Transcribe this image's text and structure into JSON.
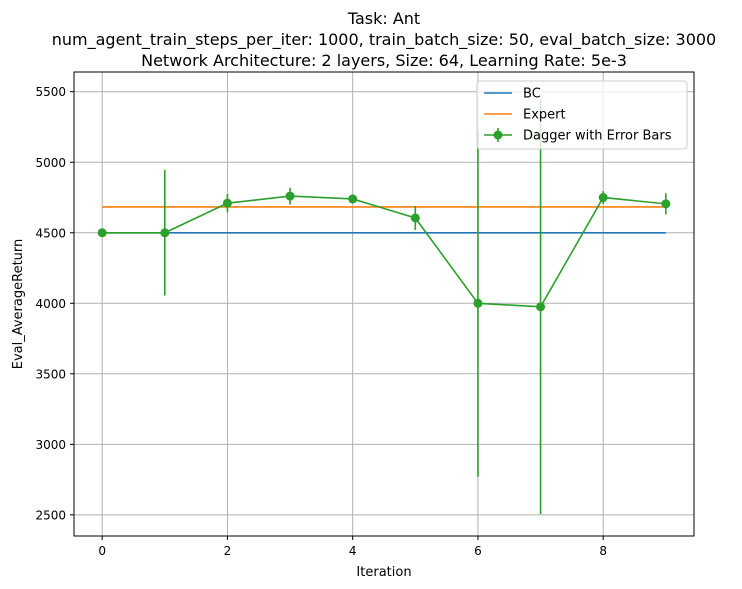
{
  "chart_data": {
    "type": "line",
    "title_lines": [
      "Task: Ant",
      "num_agent_train_steps_per_iter: 1000, train_batch_size: 50, eval_batch_size: 3000",
      "Network Architecture: 2 layers, Size: 64, Learning Rate: 5e-3"
    ],
    "xlabel": "Iteration",
    "ylabel": "Eval_AverageReturn",
    "xlim": [
      -0.45,
      9.45
    ],
    "ylim": [
      2350,
      5640
    ],
    "xticks": [
      0,
      2,
      4,
      6,
      8
    ],
    "yticks": [
      2500,
      3000,
      3500,
      4000,
      4500,
      5000,
      5500
    ],
    "grid": true,
    "legend_position": "top-right",
    "x": [
      0,
      1,
      2,
      3,
      4,
      5,
      6,
      7,
      8,
      9
    ],
    "series": [
      {
        "name": "BC",
        "color": "#1f77b4",
        "style": "line",
        "values": [
          4500,
          4500,
          4500,
          4500,
          4500,
          4500,
          4500,
          4500,
          4500,
          4500
        ]
      },
      {
        "name": "Expert",
        "color": "#ff7f0e",
        "style": "line",
        "values": [
          4683,
          4683,
          4683,
          4683,
          4683,
          4683,
          4683,
          4683,
          4683,
          4683
        ]
      },
      {
        "name": "Dagger with Error Bars",
        "color": "#2ca02c",
        "style": "errorbar",
        "values": [
          4500,
          4500,
          4710,
          4760,
          4740,
          4605,
          4000,
          3975,
          4750,
          4705
        ],
        "errors": [
          5,
          445,
          65,
          60,
          30,
          85,
          1230,
          1470,
          45,
          75
        ]
      }
    ]
  }
}
